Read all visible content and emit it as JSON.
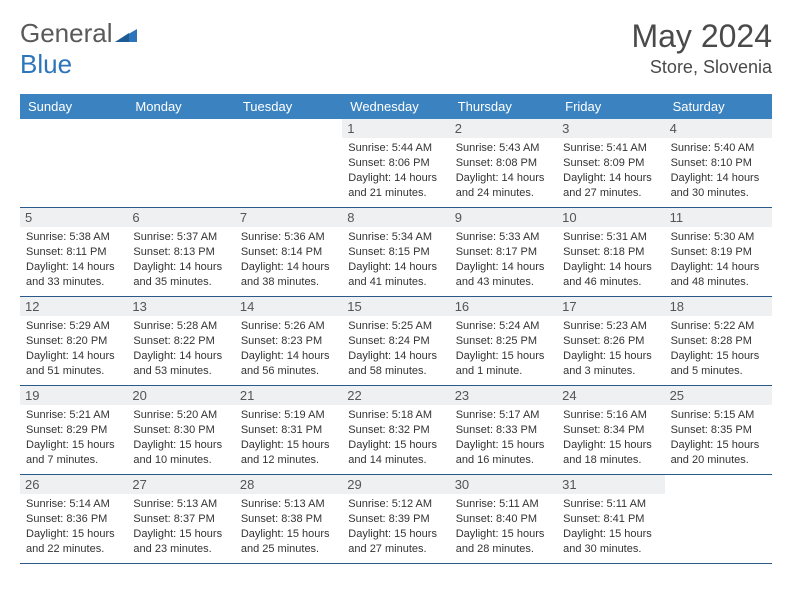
{
  "brand": {
    "part1": "General",
    "part2": "Blue"
  },
  "title": "May 2024",
  "location": "Store, Slovenia",
  "colors": {
    "header_bg": "#3b83c0",
    "header_text": "#ffffff",
    "daynum_bg": "#eef0f2",
    "border": "#2a5a8a",
    "logo_gray": "#5a5a5a",
    "logo_blue": "#2d75bb"
  },
  "day_labels": [
    "Sunday",
    "Monday",
    "Tuesday",
    "Wednesday",
    "Thursday",
    "Friday",
    "Saturday"
  ],
  "weeks": [
    [
      {
        "n": "",
        "sunrise": "",
        "sunset": "",
        "daylight": ""
      },
      {
        "n": "",
        "sunrise": "",
        "sunset": "",
        "daylight": ""
      },
      {
        "n": "",
        "sunrise": "",
        "sunset": "",
        "daylight": ""
      },
      {
        "n": "1",
        "sunrise": "Sunrise: 5:44 AM",
        "sunset": "Sunset: 8:06 PM",
        "daylight": "Daylight: 14 hours and 21 minutes."
      },
      {
        "n": "2",
        "sunrise": "Sunrise: 5:43 AM",
        "sunset": "Sunset: 8:08 PM",
        "daylight": "Daylight: 14 hours and 24 minutes."
      },
      {
        "n": "3",
        "sunrise": "Sunrise: 5:41 AM",
        "sunset": "Sunset: 8:09 PM",
        "daylight": "Daylight: 14 hours and 27 minutes."
      },
      {
        "n": "4",
        "sunrise": "Sunrise: 5:40 AM",
        "sunset": "Sunset: 8:10 PM",
        "daylight": "Daylight: 14 hours and 30 minutes."
      }
    ],
    [
      {
        "n": "5",
        "sunrise": "Sunrise: 5:38 AM",
        "sunset": "Sunset: 8:11 PM",
        "daylight": "Daylight: 14 hours and 33 minutes."
      },
      {
        "n": "6",
        "sunrise": "Sunrise: 5:37 AM",
        "sunset": "Sunset: 8:13 PM",
        "daylight": "Daylight: 14 hours and 35 minutes."
      },
      {
        "n": "7",
        "sunrise": "Sunrise: 5:36 AM",
        "sunset": "Sunset: 8:14 PM",
        "daylight": "Daylight: 14 hours and 38 minutes."
      },
      {
        "n": "8",
        "sunrise": "Sunrise: 5:34 AM",
        "sunset": "Sunset: 8:15 PM",
        "daylight": "Daylight: 14 hours and 41 minutes."
      },
      {
        "n": "9",
        "sunrise": "Sunrise: 5:33 AM",
        "sunset": "Sunset: 8:17 PM",
        "daylight": "Daylight: 14 hours and 43 minutes."
      },
      {
        "n": "10",
        "sunrise": "Sunrise: 5:31 AM",
        "sunset": "Sunset: 8:18 PM",
        "daylight": "Daylight: 14 hours and 46 minutes."
      },
      {
        "n": "11",
        "sunrise": "Sunrise: 5:30 AM",
        "sunset": "Sunset: 8:19 PM",
        "daylight": "Daylight: 14 hours and 48 minutes."
      }
    ],
    [
      {
        "n": "12",
        "sunrise": "Sunrise: 5:29 AM",
        "sunset": "Sunset: 8:20 PM",
        "daylight": "Daylight: 14 hours and 51 minutes."
      },
      {
        "n": "13",
        "sunrise": "Sunrise: 5:28 AM",
        "sunset": "Sunset: 8:22 PM",
        "daylight": "Daylight: 14 hours and 53 minutes."
      },
      {
        "n": "14",
        "sunrise": "Sunrise: 5:26 AM",
        "sunset": "Sunset: 8:23 PM",
        "daylight": "Daylight: 14 hours and 56 minutes."
      },
      {
        "n": "15",
        "sunrise": "Sunrise: 5:25 AM",
        "sunset": "Sunset: 8:24 PM",
        "daylight": "Daylight: 14 hours and 58 minutes."
      },
      {
        "n": "16",
        "sunrise": "Sunrise: 5:24 AM",
        "sunset": "Sunset: 8:25 PM",
        "daylight": "Daylight: 15 hours and 1 minute."
      },
      {
        "n": "17",
        "sunrise": "Sunrise: 5:23 AM",
        "sunset": "Sunset: 8:26 PM",
        "daylight": "Daylight: 15 hours and 3 minutes."
      },
      {
        "n": "18",
        "sunrise": "Sunrise: 5:22 AM",
        "sunset": "Sunset: 8:28 PM",
        "daylight": "Daylight: 15 hours and 5 minutes."
      }
    ],
    [
      {
        "n": "19",
        "sunrise": "Sunrise: 5:21 AM",
        "sunset": "Sunset: 8:29 PM",
        "daylight": "Daylight: 15 hours and 7 minutes."
      },
      {
        "n": "20",
        "sunrise": "Sunrise: 5:20 AM",
        "sunset": "Sunset: 8:30 PM",
        "daylight": "Daylight: 15 hours and 10 minutes."
      },
      {
        "n": "21",
        "sunrise": "Sunrise: 5:19 AM",
        "sunset": "Sunset: 8:31 PM",
        "daylight": "Daylight: 15 hours and 12 minutes."
      },
      {
        "n": "22",
        "sunrise": "Sunrise: 5:18 AM",
        "sunset": "Sunset: 8:32 PM",
        "daylight": "Daylight: 15 hours and 14 minutes."
      },
      {
        "n": "23",
        "sunrise": "Sunrise: 5:17 AM",
        "sunset": "Sunset: 8:33 PM",
        "daylight": "Daylight: 15 hours and 16 minutes."
      },
      {
        "n": "24",
        "sunrise": "Sunrise: 5:16 AM",
        "sunset": "Sunset: 8:34 PM",
        "daylight": "Daylight: 15 hours and 18 minutes."
      },
      {
        "n": "25",
        "sunrise": "Sunrise: 5:15 AM",
        "sunset": "Sunset: 8:35 PM",
        "daylight": "Daylight: 15 hours and 20 minutes."
      }
    ],
    [
      {
        "n": "26",
        "sunrise": "Sunrise: 5:14 AM",
        "sunset": "Sunset: 8:36 PM",
        "daylight": "Daylight: 15 hours and 22 minutes."
      },
      {
        "n": "27",
        "sunrise": "Sunrise: 5:13 AM",
        "sunset": "Sunset: 8:37 PM",
        "daylight": "Daylight: 15 hours and 23 minutes."
      },
      {
        "n": "28",
        "sunrise": "Sunrise: 5:13 AM",
        "sunset": "Sunset: 8:38 PM",
        "daylight": "Daylight: 15 hours and 25 minutes."
      },
      {
        "n": "29",
        "sunrise": "Sunrise: 5:12 AM",
        "sunset": "Sunset: 8:39 PM",
        "daylight": "Daylight: 15 hours and 27 minutes."
      },
      {
        "n": "30",
        "sunrise": "Sunrise: 5:11 AM",
        "sunset": "Sunset: 8:40 PM",
        "daylight": "Daylight: 15 hours and 28 minutes."
      },
      {
        "n": "31",
        "sunrise": "Sunrise: 5:11 AM",
        "sunset": "Sunset: 8:41 PM",
        "daylight": "Daylight: 15 hours and 30 minutes."
      },
      {
        "n": "",
        "sunrise": "",
        "sunset": "",
        "daylight": ""
      }
    ]
  ]
}
